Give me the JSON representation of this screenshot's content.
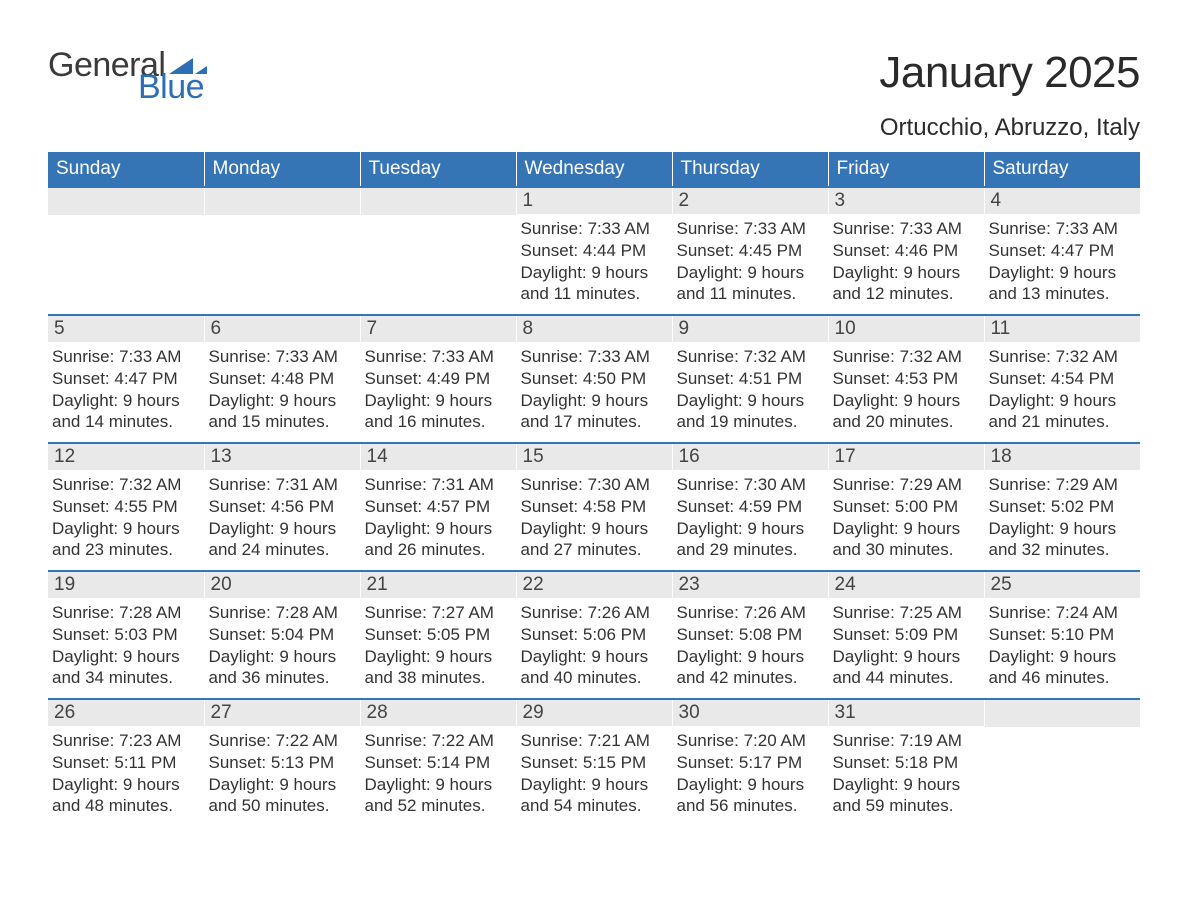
{
  "brand": {
    "line1": "General",
    "line2": "Blue",
    "accent_color": "#2d6fb5"
  },
  "title": "January 2025",
  "location": "Ortucchio, Abruzzo, Italy",
  "header_bg": "#3675b5",
  "daynum_bg": "#e9e9e9",
  "week_border": "#3675b5",
  "day_headers": [
    "Sunday",
    "Monday",
    "Tuesday",
    "Wednesday",
    "Thursday",
    "Friday",
    "Saturday"
  ],
  "weeks": [
    [
      null,
      null,
      null,
      {
        "n": "1",
        "sunrise": "7:33 AM",
        "sunset": "4:44 PM",
        "dl1": "Daylight: 9 hours",
        "dl2": "and 11 minutes."
      },
      {
        "n": "2",
        "sunrise": "7:33 AM",
        "sunset": "4:45 PM",
        "dl1": "Daylight: 9 hours",
        "dl2": "and 11 minutes."
      },
      {
        "n": "3",
        "sunrise": "7:33 AM",
        "sunset": "4:46 PM",
        "dl1": "Daylight: 9 hours",
        "dl2": "and 12 minutes."
      },
      {
        "n": "4",
        "sunrise": "7:33 AM",
        "sunset": "4:47 PM",
        "dl1": "Daylight: 9 hours",
        "dl2": "and 13 minutes."
      }
    ],
    [
      {
        "n": "5",
        "sunrise": "7:33 AM",
        "sunset": "4:47 PM",
        "dl1": "Daylight: 9 hours",
        "dl2": "and 14 minutes."
      },
      {
        "n": "6",
        "sunrise": "7:33 AM",
        "sunset": "4:48 PM",
        "dl1": "Daylight: 9 hours",
        "dl2": "and 15 minutes."
      },
      {
        "n": "7",
        "sunrise": "7:33 AM",
        "sunset": "4:49 PM",
        "dl1": "Daylight: 9 hours",
        "dl2": "and 16 minutes."
      },
      {
        "n": "8",
        "sunrise": "7:33 AM",
        "sunset": "4:50 PM",
        "dl1": "Daylight: 9 hours",
        "dl2": "and 17 minutes."
      },
      {
        "n": "9",
        "sunrise": "7:32 AM",
        "sunset": "4:51 PM",
        "dl1": "Daylight: 9 hours",
        "dl2": "and 19 minutes."
      },
      {
        "n": "10",
        "sunrise": "7:32 AM",
        "sunset": "4:53 PM",
        "dl1": "Daylight: 9 hours",
        "dl2": "and 20 minutes."
      },
      {
        "n": "11",
        "sunrise": "7:32 AM",
        "sunset": "4:54 PM",
        "dl1": "Daylight: 9 hours",
        "dl2": "and 21 minutes."
      }
    ],
    [
      {
        "n": "12",
        "sunrise": "7:32 AM",
        "sunset": "4:55 PM",
        "dl1": "Daylight: 9 hours",
        "dl2": "and 23 minutes."
      },
      {
        "n": "13",
        "sunrise": "7:31 AM",
        "sunset": "4:56 PM",
        "dl1": "Daylight: 9 hours",
        "dl2": "and 24 minutes."
      },
      {
        "n": "14",
        "sunrise": "7:31 AM",
        "sunset": "4:57 PM",
        "dl1": "Daylight: 9 hours",
        "dl2": "and 26 minutes."
      },
      {
        "n": "15",
        "sunrise": "7:30 AM",
        "sunset": "4:58 PM",
        "dl1": "Daylight: 9 hours",
        "dl2": "and 27 minutes."
      },
      {
        "n": "16",
        "sunrise": "7:30 AM",
        "sunset": "4:59 PM",
        "dl1": "Daylight: 9 hours",
        "dl2": "and 29 minutes."
      },
      {
        "n": "17",
        "sunrise": "7:29 AM",
        "sunset": "5:00 PM",
        "dl1": "Daylight: 9 hours",
        "dl2": "and 30 minutes."
      },
      {
        "n": "18",
        "sunrise": "7:29 AM",
        "sunset": "5:02 PM",
        "dl1": "Daylight: 9 hours",
        "dl2": "and 32 minutes."
      }
    ],
    [
      {
        "n": "19",
        "sunrise": "7:28 AM",
        "sunset": "5:03 PM",
        "dl1": "Daylight: 9 hours",
        "dl2": "and 34 minutes."
      },
      {
        "n": "20",
        "sunrise": "7:28 AM",
        "sunset": "5:04 PM",
        "dl1": "Daylight: 9 hours",
        "dl2": "and 36 minutes."
      },
      {
        "n": "21",
        "sunrise": "7:27 AM",
        "sunset": "5:05 PM",
        "dl1": "Daylight: 9 hours",
        "dl2": "and 38 minutes."
      },
      {
        "n": "22",
        "sunrise": "7:26 AM",
        "sunset": "5:06 PM",
        "dl1": "Daylight: 9 hours",
        "dl2": "and 40 minutes."
      },
      {
        "n": "23",
        "sunrise": "7:26 AM",
        "sunset": "5:08 PM",
        "dl1": "Daylight: 9 hours",
        "dl2": "and 42 minutes."
      },
      {
        "n": "24",
        "sunrise": "7:25 AM",
        "sunset": "5:09 PM",
        "dl1": "Daylight: 9 hours",
        "dl2": "and 44 minutes."
      },
      {
        "n": "25",
        "sunrise": "7:24 AM",
        "sunset": "5:10 PM",
        "dl1": "Daylight: 9 hours",
        "dl2": "and 46 minutes."
      }
    ],
    [
      {
        "n": "26",
        "sunrise": "7:23 AM",
        "sunset": "5:11 PM",
        "dl1": "Daylight: 9 hours",
        "dl2": "and 48 minutes."
      },
      {
        "n": "27",
        "sunrise": "7:22 AM",
        "sunset": "5:13 PM",
        "dl1": "Daylight: 9 hours",
        "dl2": "and 50 minutes."
      },
      {
        "n": "28",
        "sunrise": "7:22 AM",
        "sunset": "5:14 PM",
        "dl1": "Daylight: 9 hours",
        "dl2": "and 52 minutes."
      },
      {
        "n": "29",
        "sunrise": "7:21 AM",
        "sunset": "5:15 PM",
        "dl1": "Daylight: 9 hours",
        "dl2": "and 54 minutes."
      },
      {
        "n": "30",
        "sunrise": "7:20 AM",
        "sunset": "5:17 PM",
        "dl1": "Daylight: 9 hours",
        "dl2": "and 56 minutes."
      },
      {
        "n": "31",
        "sunrise": "7:19 AM",
        "sunset": "5:18 PM",
        "dl1": "Daylight: 9 hours",
        "dl2": "and 59 minutes."
      },
      null
    ]
  ],
  "labels": {
    "sunrise": "Sunrise: ",
    "sunset": "Sunset: "
  }
}
